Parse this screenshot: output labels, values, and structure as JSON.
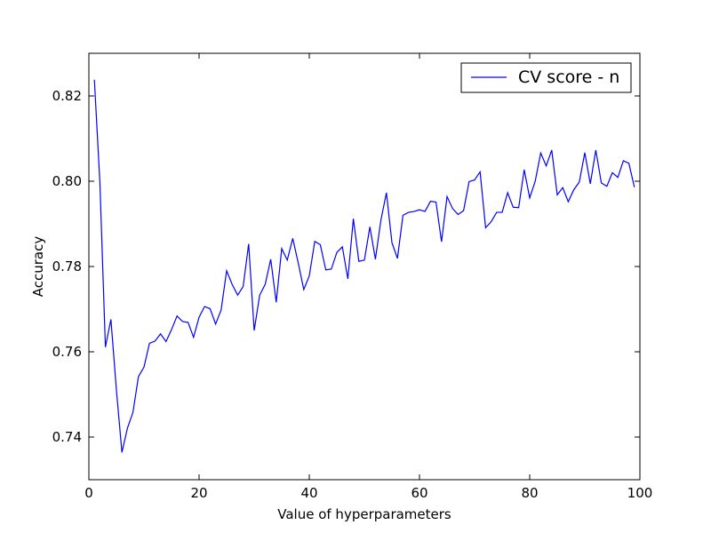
{
  "chart_data": {
    "type": "line",
    "title": "",
    "xlabel": "Value of hyperparameters",
    "ylabel": "Accuracy",
    "xlim": [
      0,
      100
    ],
    "ylim": [
      0.73,
      0.83
    ],
    "x_ticks": [
      0,
      20,
      40,
      60,
      80,
      100
    ],
    "x_tick_labels": [
      "0",
      "20",
      "40",
      "60",
      "80",
      "100"
    ],
    "y_ticks": [
      0.74,
      0.76,
      0.78,
      0.8,
      0.82
    ],
    "y_tick_labels": [
      "0.74",
      "0.76",
      "0.78",
      "0.80",
      "0.82"
    ],
    "grid": false,
    "legend": {
      "position": "top-right"
    },
    "series": [
      {
        "name": "CV score - n",
        "color": "#0000ff",
        "x": [
          1,
          2,
          3,
          4,
          5,
          6,
          7,
          8,
          9,
          10,
          11,
          12,
          13,
          14,
          15,
          16,
          17,
          18,
          19,
          20,
          21,
          22,
          23,
          24,
          25,
          26,
          27,
          28,
          29,
          30,
          31,
          32,
          33,
          34,
          35,
          36,
          37,
          38,
          39,
          40,
          41,
          42,
          43,
          44,
          45,
          46,
          47,
          48,
          49,
          50,
          51,
          52,
          53,
          54,
          55,
          56,
          57,
          58,
          59,
          60,
          61,
          62,
          63,
          64,
          65,
          66,
          67,
          68,
          69,
          70,
          71,
          72,
          73,
          74,
          75,
          76,
          77,
          78,
          79,
          80,
          81,
          82,
          83,
          84,
          85,
          86,
          87,
          88,
          89,
          90,
          91,
          92,
          93,
          94,
          95,
          96,
          97,
          98,
          99
        ],
        "values": [
          0.8238,
          0.7997,
          0.7611,
          0.7676,
          0.751,
          0.7364,
          0.7421,
          0.7458,
          0.7542,
          0.7564,
          0.762,
          0.7625,
          0.7642,
          0.7624,
          0.7652,
          0.7684,
          0.7671,
          0.7669,
          0.7634,
          0.7681,
          0.7706,
          0.7701,
          0.7665,
          0.7698,
          0.779,
          0.7758,
          0.7733,
          0.7753,
          0.7853,
          0.765,
          0.7733,
          0.7758,
          0.7817,
          0.7716,
          0.7842,
          0.7815,
          0.7866,
          0.7808,
          0.7746,
          0.7778,
          0.7859,
          0.7851,
          0.7792,
          0.7794,
          0.7833,
          0.7846,
          0.7771,
          0.7912,
          0.7812,
          0.7815,
          0.7893,
          0.7817,
          0.7909,
          0.7973,
          0.7856,
          0.7819,
          0.792,
          0.7927,
          0.7929,
          0.7933,
          0.7929,
          0.7953,
          0.7951,
          0.7858,
          0.7964,
          0.7936,
          0.7922,
          0.7931,
          0.7999,
          0.8003,
          0.8022,
          0.7891,
          0.7905,
          0.7927,
          0.7927,
          0.7973,
          0.7939,
          0.7938,
          0.8027,
          0.7961,
          0.8,
          0.8066,
          0.8036,
          0.8073,
          0.7968,
          0.7985,
          0.7952,
          0.798,
          0.7998,
          0.8067,
          0.7994,
          0.8073,
          0.7996,
          0.7988,
          0.802,
          0.8009,
          0.8048,
          0.8042,
          0.7986
        ]
      }
    ]
  }
}
